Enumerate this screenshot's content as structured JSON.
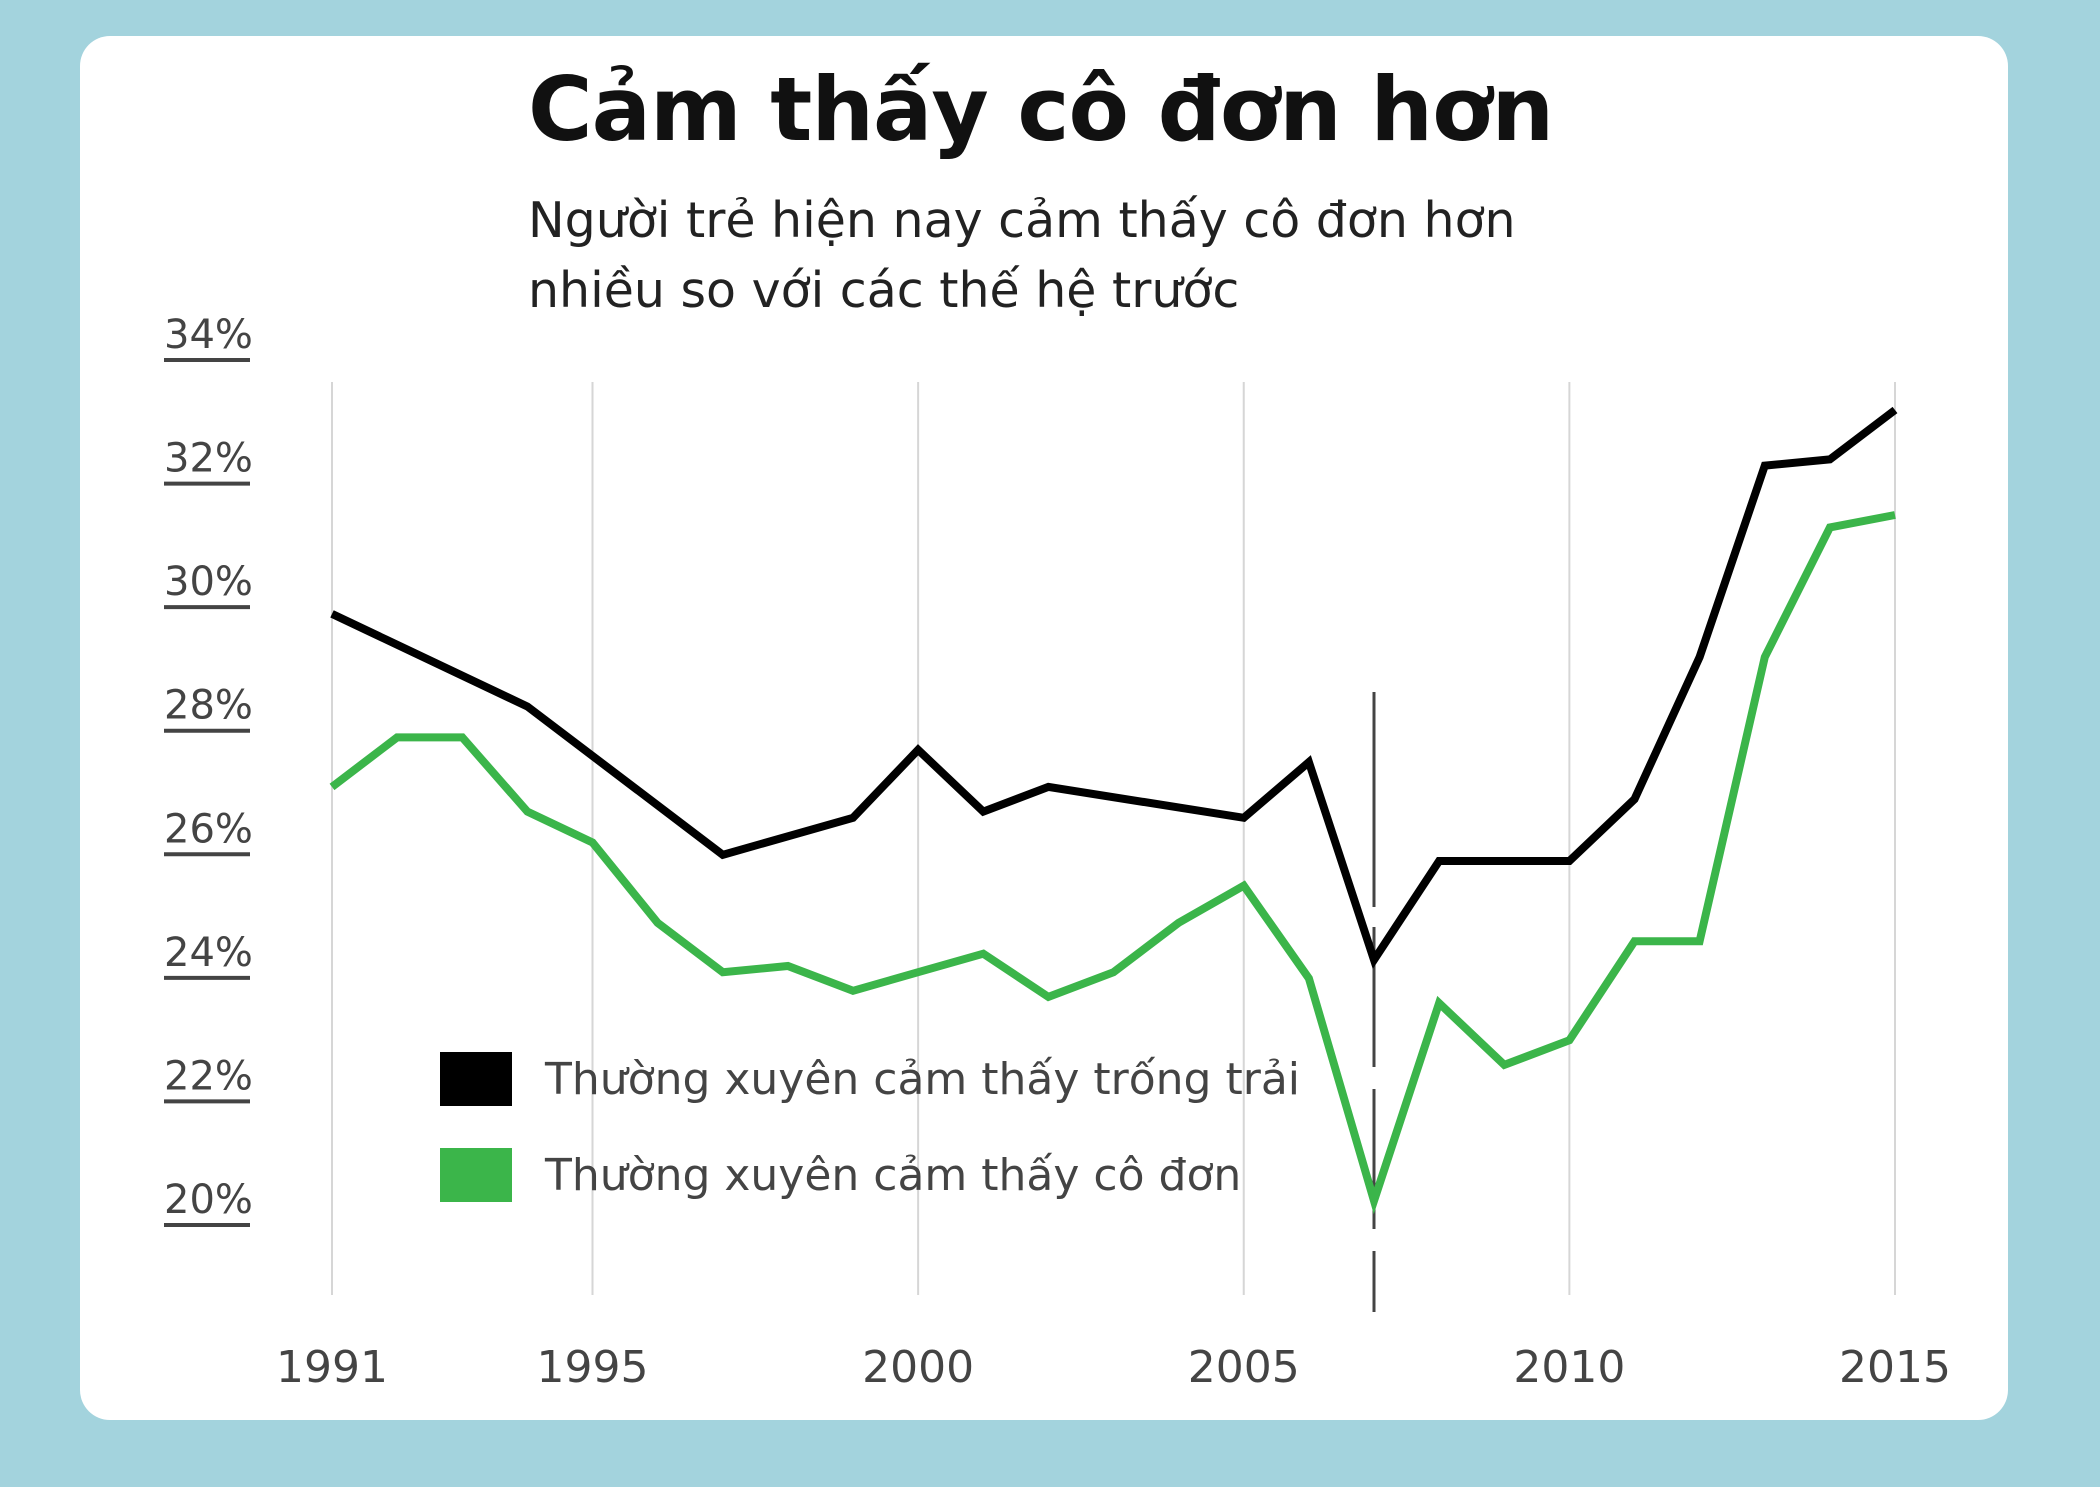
{
  "colors": {
    "background": "#a3d3dd",
    "card": "#ffffff",
    "series1": "#000000",
    "series2": "#3bb54a",
    "grid": "#d6d6d6",
    "axis_text": "#444444"
  },
  "title": "Cảm thấy cô đơn hơn",
  "subtitle": [
    "Người trẻ hiện nay cảm thấy cô đơn hơn",
    "nhiều so với các thế hệ trước"
  ],
  "chart_data": {
    "type": "line",
    "title": "Cảm thấy cô đơn hơn",
    "subtitle": "Người trẻ hiện nay cảm thấy cô đơn hơn nhiều so với các thế hệ trước",
    "xlabel": "",
    "ylabel": "",
    "x_ticks": [
      1991,
      1995,
      2000,
      2005,
      2010,
      2015
    ],
    "xlim": [
      1991,
      2015
    ],
    "y_ticks": [
      34,
      32,
      30,
      28,
      26,
      24,
      22,
      20
    ],
    "y_tick_labels": [
      "34%",
      "32%",
      "30%",
      "28%",
      "26%",
      "24%",
      "22%",
      "20%"
    ],
    "ylim": [
      20,
      34
    ],
    "grid": "vertical",
    "legend_position": "bottom-left",
    "annotation": {
      "type": "dashed-vertical-line",
      "x": 2007
    },
    "series": [
      {
        "name": "Thường xuyên cảm thấy trống trải",
        "color": "#000000",
        "x": [
          1991,
          1994,
          1997,
          1999,
          2000,
          2001,
          2002,
          2005,
          2006,
          2007,
          2008,
          2010,
          2011,
          2012,
          2013,
          2014,
          2015
        ],
        "y": [
          29.6,
          28.1,
          25.7,
          26.3,
          27.4,
          26.4,
          26.8,
          26.3,
          27.2,
          24.0,
          25.6,
          25.6,
          26.6,
          28.9,
          32.0,
          32.1,
          32.9
        ]
      },
      {
        "name": "Thường xuyên cảm thấy cô đơn",
        "color": "#3bb54a",
        "x": [
          1991,
          1992,
          1993,
          1994,
          1995,
          1996,
          1997,
          1998,
          1999,
          2000,
          2001,
          2002,
          2003,
          2004,
          2005,
          2006,
          2007,
          2008,
          2009,
          2010,
          2011,
          2012,
          2013,
          2014,
          2015
        ],
        "y": [
          26.8,
          27.6,
          27.6,
          26.4,
          25.9,
          24.6,
          23.8,
          23.9,
          23.5,
          23.8,
          24.1,
          23.4,
          23.8,
          24.6,
          25.2,
          23.7,
          20.1,
          23.3,
          22.3,
          22.7,
          24.3,
          24.3,
          28.9,
          31.0,
          31.2
        ]
      }
    ]
  }
}
